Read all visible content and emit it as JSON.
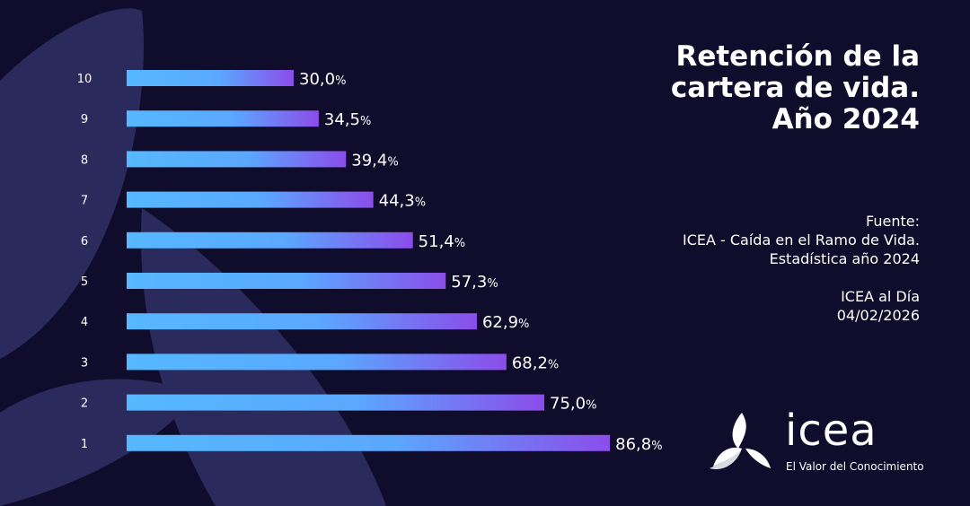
{
  "title_lines": [
    "Retención de la",
    "cartera de vida.",
    "Año 2024"
  ],
  "source": {
    "heading": "Fuente:",
    "line1": "ICEA - Caída en el Ramo de Vida.",
    "line2": "Estadística año 2024",
    "publication": "ICEA al Día",
    "date": "04/02/2026"
  },
  "logo": {
    "word": "icea",
    "tagline": "El Valor del Conocimiento"
  },
  "colors": {
    "background": "#0f0d2b",
    "shape": "#2b2a5c",
    "bar_start": "#56b8ff",
    "bar_end": "#8b4dea"
  },
  "chart_data": {
    "type": "bar",
    "orientation": "horizontal",
    "categories": [
      "10",
      "9",
      "8",
      "7",
      "6",
      "5",
      "4",
      "3",
      "2",
      "1"
    ],
    "values": [
      30.0,
      34.5,
      39.4,
      44.3,
      51.4,
      57.3,
      62.9,
      68.2,
      75.0,
      86.8
    ],
    "value_labels": [
      "30,0",
      "34,5",
      "39,4",
      "44,3",
      "51,4",
      "57,3",
      "62,9",
      "68,2",
      "75,0",
      "86,8"
    ],
    "unit": "%",
    "xlim": [
      0,
      100
    ],
    "grid": false
  }
}
